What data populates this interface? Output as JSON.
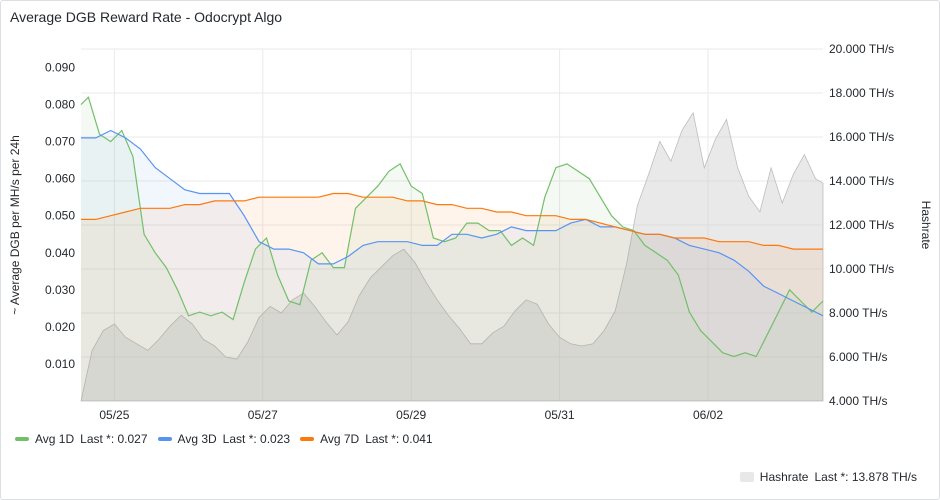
{
  "panel": {
    "title": "Average DGB Reward Rate - Odocrypt Algo"
  },
  "chart_data": {
    "type": "line",
    "title": "Average DGB Reward Rate - Odocrypt Algo",
    "ylabel": "~ Average DGB per MH/s per 24h",
    "y2label": "Hashrate",
    "ylim": [
      0.0,
      0.095
    ],
    "y2lim": [
      4.0,
      20.0
    ],
    "yticks": [
      "0.010",
      "0.020",
      "0.030",
      "0.040",
      "0.050",
      "0.060",
      "0.070",
      "0.080",
      "0.090"
    ],
    "y2ticks": [
      "4.000 TH/s",
      "6.000 TH/s",
      "8.000 TH/s",
      "10.000 TH/s",
      "12.000 TH/s",
      "14.000 TH/s",
      "16.000 TH/s",
      "18.000 TH/s",
      "20.000 TH/s"
    ],
    "xlim": [
      0.0,
      10.0
    ],
    "xticks": [
      {
        "x": 0.45,
        "label": "05/25"
      },
      {
        "x": 2.45,
        "label": "05/27"
      },
      {
        "x": 4.45,
        "label": "05/29"
      },
      {
        "x": 6.45,
        "label": "05/31"
      },
      {
        "x": 8.45,
        "label": "06/02"
      }
    ],
    "grid": true,
    "series": [
      {
        "name": "Avg 1D",
        "axis": "left",
        "color": "#73bf69",
        "last_label": "Last *: 0.027",
        "x": [
          0,
          0.1,
          0.25,
          0.4,
          0.55,
          0.7,
          0.85,
          1.0,
          1.15,
          1.3,
          1.45,
          1.6,
          1.75,
          1.9,
          2.05,
          2.2,
          2.35,
          2.5,
          2.65,
          2.8,
          2.95,
          3.1,
          3.25,
          3.4,
          3.55,
          3.7,
          3.85,
          4.0,
          4.15,
          4.3,
          4.45,
          4.6,
          4.75,
          4.9,
          5.05,
          5.2,
          5.35,
          5.5,
          5.65,
          5.8,
          5.95,
          6.1,
          6.25,
          6.4,
          6.55,
          6.7,
          6.85,
          7.0,
          7.15,
          7.3,
          7.45,
          7.6,
          7.75,
          7.9,
          8.05,
          8.2,
          8.35,
          8.5,
          8.65,
          8.8,
          8.95,
          9.1,
          9.25,
          9.4,
          9.55,
          9.7,
          9.85,
          10.0
        ],
        "y": [
          0.08,
          0.082,
          0.072,
          0.07,
          0.073,
          0.066,
          0.045,
          0.04,
          0.036,
          0.03,
          0.023,
          0.024,
          0.023,
          0.024,
          0.022,
          0.032,
          0.041,
          0.044,
          0.034,
          0.027,
          0.026,
          0.038,
          0.04,
          0.036,
          0.036,
          0.052,
          0.055,
          0.058,
          0.062,
          0.064,
          0.058,
          0.056,
          0.044,
          0.043,
          0.044,
          0.048,
          0.048,
          0.046,
          0.046,
          0.042,
          0.044,
          0.042,
          0.055,
          0.063,
          0.064,
          0.062,
          0.06,
          0.055,
          0.05,
          0.047,
          0.046,
          0.042,
          0.04,
          0.038,
          0.034,
          0.024,
          0.019,
          0.016,
          0.013,
          0.012,
          0.013,
          0.012,
          0.018,
          0.024,
          0.03,
          0.027,
          0.024,
          0.027
        ]
      },
      {
        "name": "Avg 3D",
        "axis": "left",
        "color": "#5794f2",
        "last_label": "Last *: 0.023",
        "x": [
          0,
          0.2,
          0.4,
          0.6,
          0.8,
          1.0,
          1.2,
          1.4,
          1.6,
          1.8,
          2.0,
          2.2,
          2.4,
          2.6,
          2.8,
          3.0,
          3.2,
          3.4,
          3.6,
          3.8,
          4.0,
          4.2,
          4.4,
          4.6,
          4.8,
          5.0,
          5.2,
          5.4,
          5.6,
          5.8,
          6.0,
          6.2,
          6.4,
          6.6,
          6.8,
          7.0,
          7.2,
          7.4,
          7.6,
          7.8,
          8.0,
          8.2,
          8.4,
          8.6,
          8.8,
          9.0,
          9.2,
          9.4,
          9.6,
          9.8,
          10.0
        ],
        "y": [
          0.071,
          0.071,
          0.073,
          0.071,
          0.068,
          0.063,
          0.06,
          0.057,
          0.056,
          0.056,
          0.056,
          0.05,
          0.043,
          0.041,
          0.041,
          0.04,
          0.037,
          0.037,
          0.039,
          0.042,
          0.043,
          0.043,
          0.043,
          0.042,
          0.042,
          0.045,
          0.045,
          0.044,
          0.045,
          0.047,
          0.046,
          0.046,
          0.046,
          0.048,
          0.049,
          0.047,
          0.047,
          0.046,
          0.045,
          0.045,
          0.044,
          0.042,
          0.041,
          0.04,
          0.038,
          0.035,
          0.031,
          0.029,
          0.027,
          0.025,
          0.023
        ]
      },
      {
        "name": "Avg 7D",
        "axis": "left",
        "color": "#ff780a",
        "last_label": "Last *: 0.041",
        "x": [
          0,
          0.2,
          0.4,
          0.6,
          0.8,
          1.0,
          1.2,
          1.4,
          1.6,
          1.8,
          2.0,
          2.2,
          2.4,
          2.6,
          2.8,
          3.0,
          3.2,
          3.4,
          3.6,
          3.8,
          4.0,
          4.2,
          4.4,
          4.6,
          4.8,
          5.0,
          5.2,
          5.4,
          5.6,
          5.8,
          6.0,
          6.2,
          6.4,
          6.6,
          6.8,
          7.0,
          7.2,
          7.4,
          7.6,
          7.8,
          8.0,
          8.2,
          8.4,
          8.6,
          8.8,
          9.0,
          9.2,
          9.4,
          9.6,
          9.8,
          10.0
        ],
        "y": [
          0.049,
          0.049,
          0.05,
          0.051,
          0.052,
          0.052,
          0.052,
          0.053,
          0.053,
          0.054,
          0.054,
          0.054,
          0.055,
          0.055,
          0.055,
          0.055,
          0.055,
          0.056,
          0.056,
          0.055,
          0.055,
          0.055,
          0.054,
          0.054,
          0.053,
          0.053,
          0.052,
          0.052,
          0.051,
          0.051,
          0.05,
          0.05,
          0.05,
          0.049,
          0.049,
          0.048,
          0.047,
          0.046,
          0.045,
          0.045,
          0.044,
          0.044,
          0.044,
          0.043,
          0.043,
          0.043,
          0.042,
          0.042,
          0.041,
          0.041,
          0.041
        ]
      },
      {
        "name": "Hashrate",
        "axis": "right",
        "color": "#c8c8c8",
        "last_label": "Last *: 13.878 TH/s",
        "x": [
          0,
          0.15,
          0.3,
          0.45,
          0.6,
          0.75,
          0.9,
          1.05,
          1.2,
          1.35,
          1.5,
          1.65,
          1.8,
          1.95,
          2.1,
          2.25,
          2.4,
          2.55,
          2.7,
          2.85,
          3.0,
          3.15,
          3.3,
          3.45,
          3.6,
          3.75,
          3.9,
          4.05,
          4.2,
          4.35,
          4.5,
          4.65,
          4.8,
          4.95,
          5.1,
          5.25,
          5.4,
          5.55,
          5.7,
          5.85,
          6.0,
          6.15,
          6.3,
          6.45,
          6.6,
          6.75,
          6.9,
          7.05,
          7.2,
          7.35,
          7.5,
          7.65,
          7.8,
          7.95,
          8.1,
          8.25,
          8.4,
          8.55,
          8.7,
          8.85,
          9.0,
          9.15,
          9.3,
          9.45,
          9.6,
          9.75,
          9.9,
          10.0
        ],
        "y": [
          4.0,
          6.3,
          7.2,
          7.5,
          6.9,
          6.6,
          6.3,
          6.8,
          7.4,
          7.9,
          7.5,
          6.8,
          6.5,
          6.0,
          5.9,
          6.7,
          7.8,
          8.3,
          8.0,
          8.6,
          8.9,
          8.3,
          7.6,
          7.0,
          7.6,
          8.8,
          9.6,
          10.1,
          10.6,
          10.9,
          10.3,
          9.4,
          8.6,
          7.9,
          7.3,
          6.6,
          6.6,
          7.1,
          7.4,
          8.1,
          8.6,
          8.4,
          7.5,
          6.9,
          6.6,
          6.5,
          6.6,
          7.2,
          8.1,
          10.2,
          12.9,
          14.3,
          15.8,
          14.9,
          16.3,
          17.1,
          14.6,
          15.9,
          16.8,
          14.6,
          13.3,
          12.6,
          14.6,
          13.0,
          14.3,
          15.2,
          14.1,
          13.9
        ]
      }
    ]
  },
  "legend": {
    "items": [
      {
        "name": "Avg 1D",
        "last": "Last *: 0.027",
        "color": "#73bf69"
      },
      {
        "name": "Avg 3D",
        "last": "Last *: 0.023",
        "color": "#5794f2"
      },
      {
        "name": "Avg 7D",
        "last": "Last *: 0.041",
        "color": "#ff780a"
      }
    ],
    "right_items": [
      {
        "name": "Hashrate",
        "last": "Last *: 13.878 TH/s",
        "color": "#e8e8e8"
      }
    ]
  }
}
